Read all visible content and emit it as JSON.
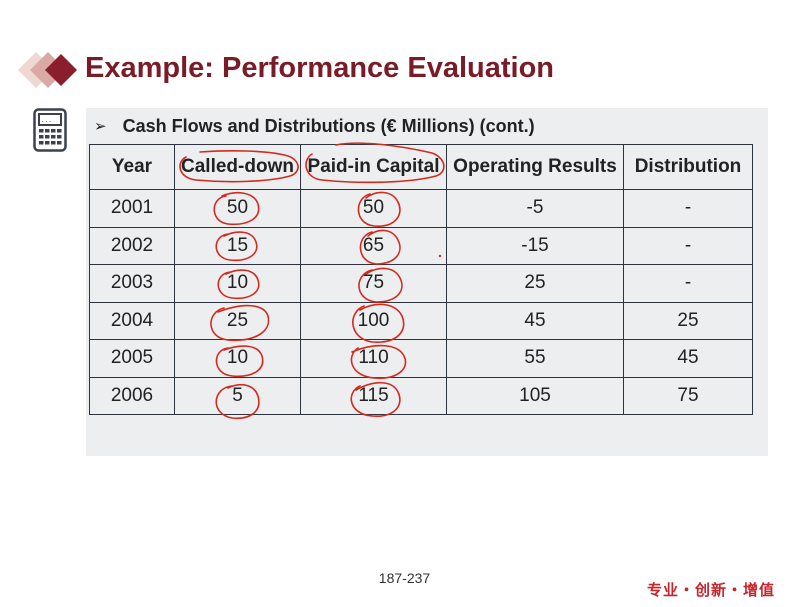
{
  "slide": {
    "title": "Example: Performance Evaluation",
    "bullet": "Cash Flows and Distributions (€ Millions) (cont.)",
    "bullet_arrow": "➢",
    "page_number": "187-237",
    "footer_slogan": "专业・创新・增值"
  },
  "table": {
    "headers": [
      "Year",
      "Called-down",
      "Paid-in Capital",
      "Operating Results",
      "Distribution"
    ],
    "rows": [
      [
        "2001",
        "50",
        "50",
        "-5",
        "-"
      ],
      [
        "2002",
        "15",
        "65",
        "-15",
        "-"
      ],
      [
        "2003",
        "10",
        "75",
        "25",
        "-"
      ],
      [
        "2004",
        "25",
        "100",
        "45",
        "25"
      ],
      [
        "2005",
        "10",
        "110",
        "55",
        "45"
      ],
      [
        "2006",
        "5",
        "115",
        "105",
        "75"
      ]
    ]
  },
  "icons": {
    "logo": "diamond-logo-icon",
    "calculator": "calculator-icon"
  },
  "colors": {
    "title": "#7a1c28",
    "logo_dark": "#8b1e2c",
    "logo_light": "#d9a9a4",
    "content_bg": "#eceef0",
    "annotation": "#d42a1e",
    "footer": "#c8242b"
  }
}
